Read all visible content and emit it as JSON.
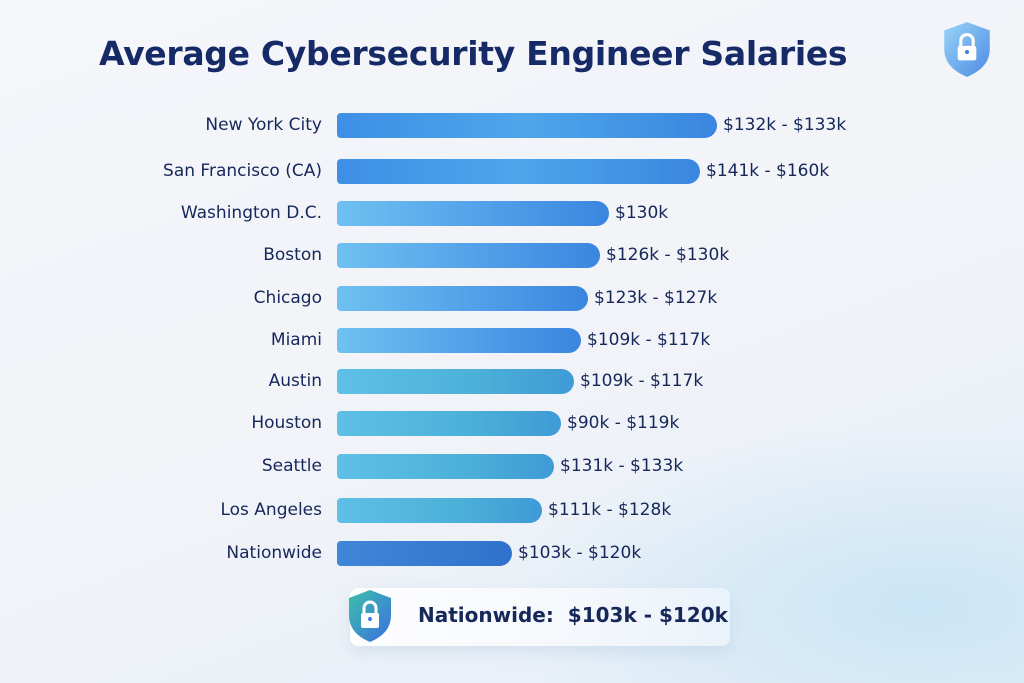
{
  "chart_data": {
    "type": "bar",
    "orientation": "horizontal",
    "title": "Average Cybersecurity Engineer Salaries",
    "categories": [
      "New York City",
      "San Francisco (CA)",
      "Washington D.C.",
      "Boston",
      "Chicago",
      "Miami",
      "Austin",
      "Houston",
      "Seattle",
      "Los Angeles",
      "Nationwide"
    ],
    "value_labels": [
      "$132k - $133k",
      "$141k - $160k",
      "$130k",
      "$126k - $130k",
      "$123k - $127k",
      "$109k - $117k",
      "$109k - $117k",
      "$90k - $119k",
      "$131k - $133k",
      "$111k - $128k",
      "$103k - $120k"
    ],
    "bar_relative_length": [
      1.0,
      0.955,
      0.716,
      0.692,
      0.661,
      0.642,
      0.624,
      0.589,
      0.571,
      0.539,
      0.461
    ],
    "xlabel": "",
    "ylabel": "",
    "grid": false,
    "legend": "none"
  },
  "summary": {
    "label": "Nationwide:",
    "value": "$103k - $120k"
  },
  "colors": {
    "title": "#152a66",
    "bar_start": "#5fb0ee",
    "bar_end": "#3a86e0",
    "bar_teal": "#4bb0d8",
    "nationwide": "#2f72cc"
  },
  "icons": {
    "corner": "shield-lock-icon",
    "summary": "shield-lock-icon"
  }
}
